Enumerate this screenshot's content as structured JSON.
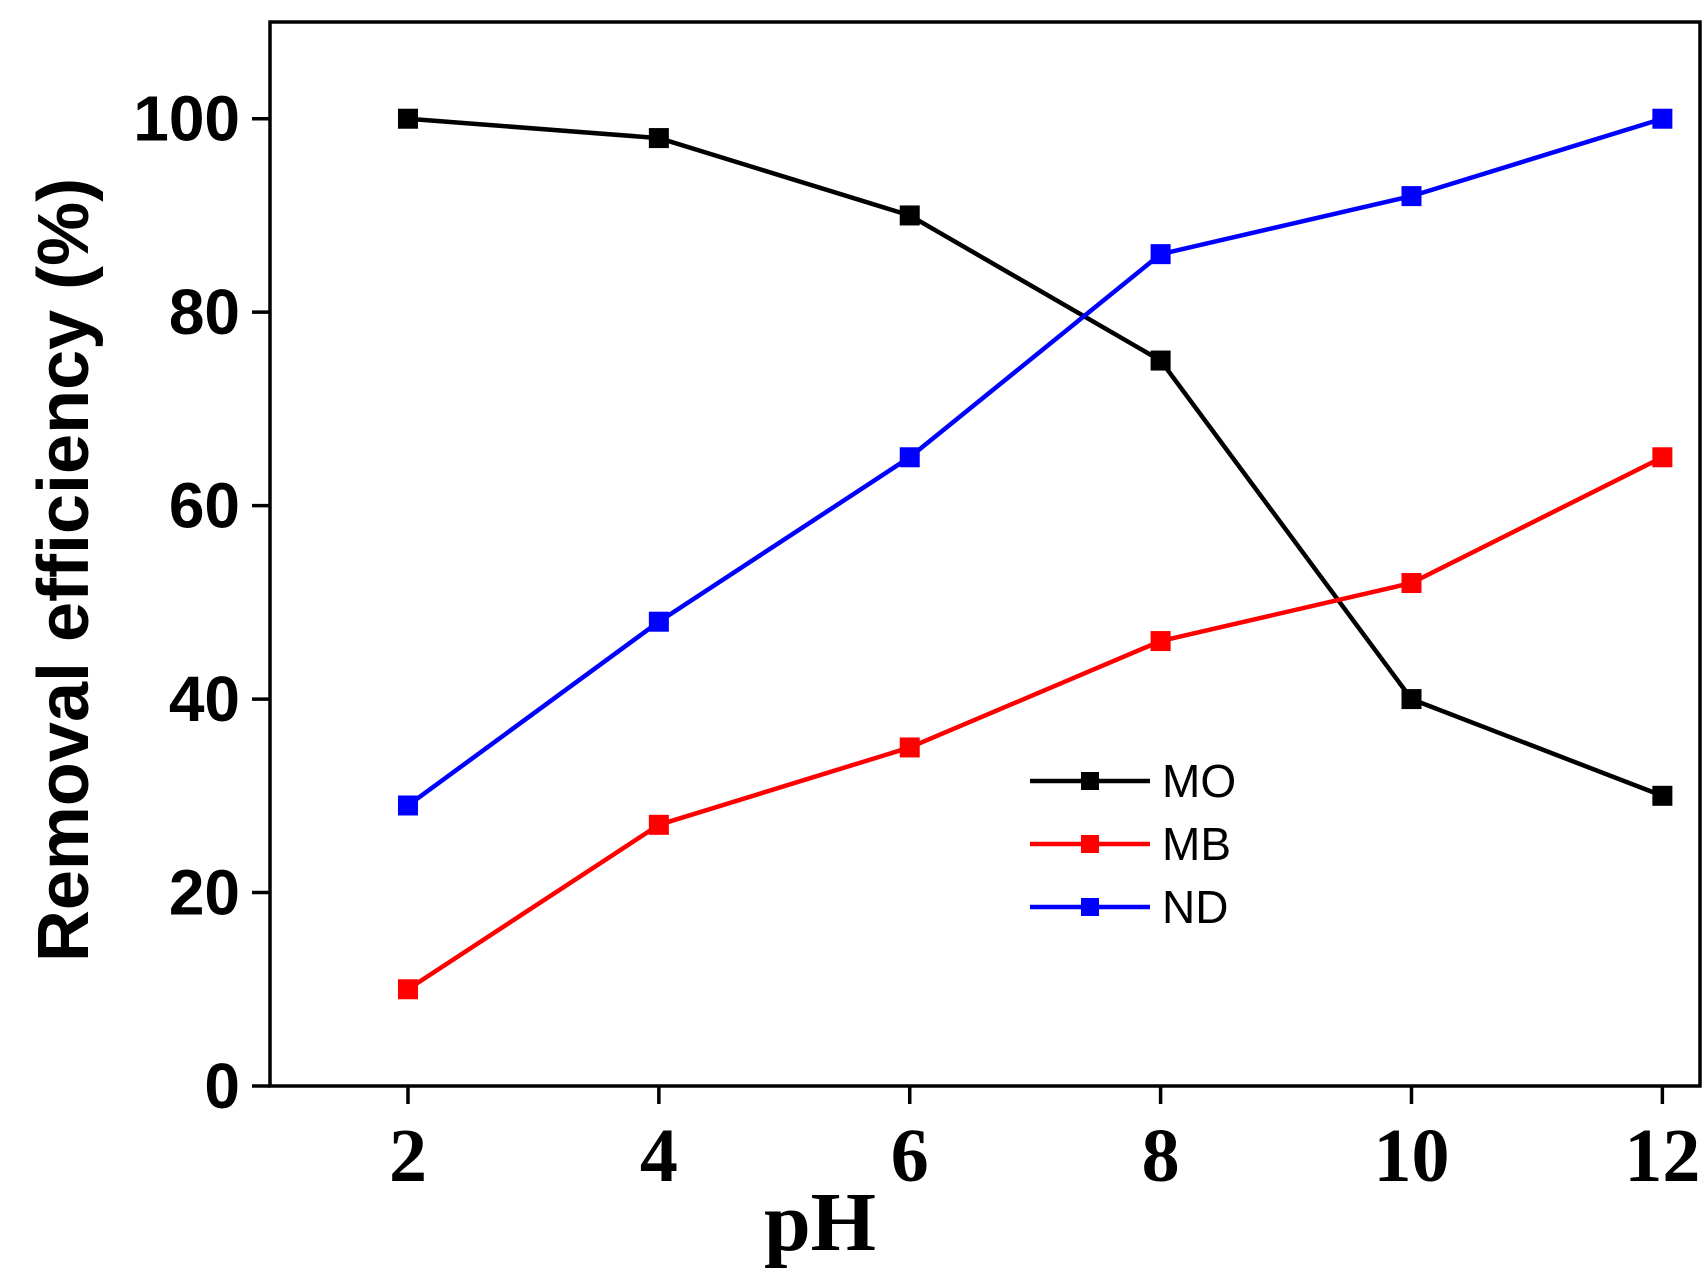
{
  "chart_data": {
    "type": "line",
    "title": "",
    "xlabel": "pH",
    "ylabel": "Removal efficiency (%)",
    "x": [
      2,
      4,
      6,
      8,
      10,
      12
    ],
    "xticks": [
      "2",
      "4",
      "6",
      "8",
      "10",
      "12"
    ],
    "yticks": [
      "0",
      "20",
      "40",
      "60",
      "80",
      "100"
    ],
    "xlim": [
      0.9,
      12.3
    ],
    "ylim": [
      0,
      110
    ],
    "grid": false,
    "legend_position": "center-right",
    "series": [
      {
        "name": "MO",
        "color": "#000000",
        "marker": "square",
        "values": [
          100,
          98,
          90,
          75,
          40,
          30
        ]
      },
      {
        "name": "MB",
        "color": "#ff0000",
        "marker": "square",
        "values": [
          10,
          27,
          35,
          46,
          52,
          65
        ]
      },
      {
        "name": "ND",
        "color": "#0000ff",
        "marker": "square",
        "values": [
          29,
          48,
          65,
          86,
          92,
          100
        ]
      }
    ]
  }
}
